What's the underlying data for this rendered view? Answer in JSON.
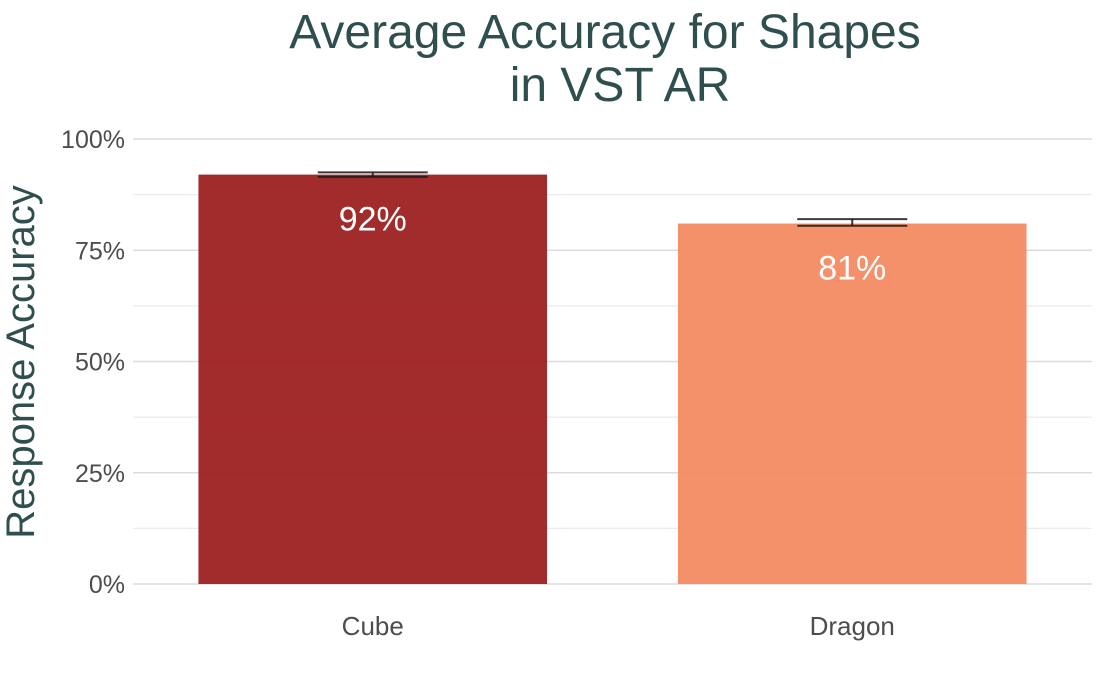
{
  "chart_data": {
    "type": "bar",
    "title": [
      "Average Accuracy for Shapes",
      "in VST AR"
    ],
    "xlabel": "",
    "ylabel": "Response Accuracy",
    "categories": [
      "Cube",
      "Dragon"
    ],
    "values": [
      0.92,
      0.81
    ],
    "data_labels": [
      "92%",
      "81%"
    ],
    "error_bars": [
      {
        "low": 0.915,
        "high": 0.925
      },
      {
        "low": 0.805,
        "high": 0.82
      }
    ],
    "colors": [
      "#9b1b1b",
      "#f4895f"
    ],
    "ylim": [
      0,
      1
    ],
    "yticks": [
      0,
      0.25,
      0.5,
      0.75,
      1
    ],
    "ytick_labels": [
      "0%",
      "25%",
      "50%",
      "75%",
      "100%"
    ],
    "grid": true,
    "legend": "none"
  }
}
